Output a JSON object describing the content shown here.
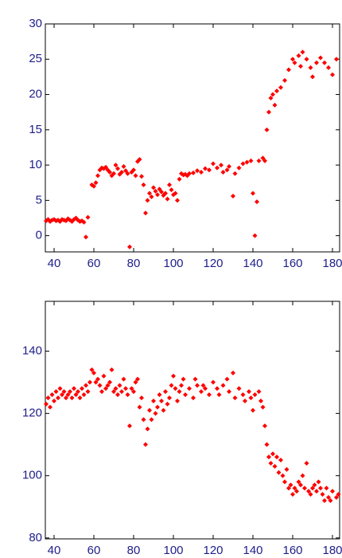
{
  "chart_data": [
    {
      "type": "scatter",
      "color": "#ff0000",
      "xlim": [
        35.6,
        183.6
      ],
      "ylim": [
        -2.3,
        30
      ],
      "xticks": [
        40,
        60,
        80,
        100,
        120,
        140,
        160,
        180
      ],
      "yticks": [
        0,
        5,
        10,
        15,
        20,
        25,
        30
      ],
      "x": [
        36,
        37,
        38,
        39,
        40,
        41,
        42,
        43,
        44,
        45,
        46,
        47,
        48,
        49,
        50,
        51,
        52,
        53,
        54,
        55,
        56,
        57,
        59,
        60,
        61,
        62,
        63,
        64,
        65,
        66,
        67,
        68,
        69,
        70,
        71,
        72,
        73,
        74,
        75,
        76,
        77,
        78,
        79,
        80,
        81,
        82,
        83,
        84,
        85,
        86,
        87,
        88,
        89,
        90,
        91,
        92,
        93,
        94,
        95,
        96,
        97,
        98,
        99,
        100,
        101,
        102,
        103,
        104,
        105,
        106,
        107,
        108,
        110,
        112,
        114,
        116,
        118,
        120,
        122,
        124,
        125,
        127,
        128,
        130,
        131,
        133,
        135,
        137,
        139,
        140,
        141,
        142,
        143,
        145,
        146,
        147,
        148,
        149,
        150,
        151,
        152,
        154,
        156,
        158,
        160,
        161,
        163,
        164,
        165,
        167,
        169,
        170,
        172,
        174,
        176,
        178,
        180,
        182
      ],
      "values": [
        2.1,
        2.3,
        2.0,
        2.2,
        2.3,
        2.1,
        2.2,
        2.0,
        2.3,
        2.2,
        2.1,
        2.4,
        2.2,
        2.0,
        2.3,
        2.5,
        2.2,
        2.0,
        2.1,
        1.9,
        -0.2,
        2.6,
        7.2,
        7.0,
        7.5,
        8.5,
        9.3,
        9.6,
        9.5,
        9.7,
        9.3,
        9.0,
        8.5,
        8.8,
        10.0,
        9.5,
        8.7,
        9.0,
        9.8,
        9.2,
        8.8,
        -1.6,
        9.0,
        9.3,
        8.5,
        10.5,
        10.8,
        8.4,
        7.2,
        3.2,
        5.0,
        6.0,
        5.5,
        6.8,
        6.3,
        5.8,
        6.6,
        6.2,
        5.7,
        6.0,
        5.2,
        7.2,
        6.5,
        5.8,
        6.0,
        5.0,
        8.0,
        8.8,
        8.6,
        8.7,
        8.5,
        8.8,
        8.9,
        9.2,
        9.0,
        9.5,
        9.3,
        10.2,
        9.6,
        10.0,
        9.0,
        9.3,
        9.8,
        5.6,
        8.8,
        9.6,
        10.2,
        10.4,
        10.6,
        6.0,
        0.0,
        4.8,
        10.6,
        11.0,
        10.6,
        15.0,
        17.5,
        19.5,
        20.0,
        18.5,
        20.5,
        21.0,
        22.0,
        23.5,
        25.0,
        24.5,
        25.5,
        24.0,
        26.0,
        25.0,
        23.8,
        22.5,
        24.5,
        25.2,
        24.5,
        23.8,
        22.8,
        25.0
      ]
    },
    {
      "type": "scatter",
      "color": "#ff0000",
      "xlim": [
        35.6,
        183.6
      ],
      "ylim": [
        79.7,
        156
      ],
      "xticks": [
        40,
        60,
        80,
        100,
        120,
        140,
        160,
        180
      ],
      "yticks": [
        80,
        100,
        120,
        140
      ],
      "x": [
        36,
        37,
        38,
        39,
        40,
        41,
        42,
        43,
        44,
        45,
        46,
        47,
        48,
        49,
        50,
        51,
        52,
        53,
        54,
        55,
        56,
        57,
        58,
        59,
        60,
        61,
        62,
        63,
        64,
        65,
        66,
        67,
        68,
        69,
        70,
        71,
        72,
        73,
        74,
        75,
        76,
        77,
        78,
        79,
        80,
        81,
        82,
        83,
        84,
        85,
        86,
        87,
        88,
        89,
        90,
        91,
        92,
        93,
        94,
        95,
        96,
        97,
        98,
        99,
        100,
        101,
        102,
        103,
        104,
        105,
        106,
        108,
        110,
        111,
        112,
        114,
        115,
        116,
        118,
        120,
        122,
        123,
        125,
        127,
        128,
        130,
        131,
        133,
        135,
        136,
        138,
        139,
        140,
        141,
        143,
        144,
        145,
        146,
        147,
        148,
        149,
        150,
        151,
        152,
        153,
        154,
        155,
        156,
        157,
        158,
        159,
        160,
        161,
        162,
        163,
        164,
        165,
        166,
        167,
        168,
        169,
        170,
        171,
        172,
        173,
        174,
        175,
        176,
        177,
        178,
        179,
        180,
        182,
        183
      ],
      "values": [
        123,
        125,
        122,
        126,
        124,
        127,
        125,
        128,
        126,
        127,
        125,
        126,
        127,
        125,
        128,
        126,
        127,
        125,
        128,
        126,
        129,
        127,
        130,
        134,
        133,
        130,
        131,
        129,
        127,
        132,
        128,
        129,
        130,
        134,
        127,
        128,
        126,
        129,
        127,
        131,
        128,
        126,
        116,
        128,
        127,
        130,
        131,
        122,
        125,
        118,
        110,
        115,
        121,
        118,
        124,
        120,
        122,
        126,
        124,
        121,
        127,
        123,
        125,
        129,
        132,
        128,
        124,
        127,
        129,
        131,
        126,
        128,
        125,
        131,
        129,
        127,
        129,
        128,
        126,
        130,
        128,
        126,
        129,
        131,
        127,
        133,
        125,
        128,
        126,
        124,
        127,
        125,
        121,
        126,
        127,
        124,
        122,
        116,
        110,
        106,
        104,
        107,
        103,
        106,
        101,
        105,
        100,
        98,
        102,
        96,
        97,
        94,
        96,
        95,
        98,
        97,
        100,
        96,
        104,
        95,
        94,
        96,
        97,
        95,
        98,
        96,
        94,
        92,
        96,
        93,
        92,
        95,
        93,
        94
      ]
    }
  ]
}
